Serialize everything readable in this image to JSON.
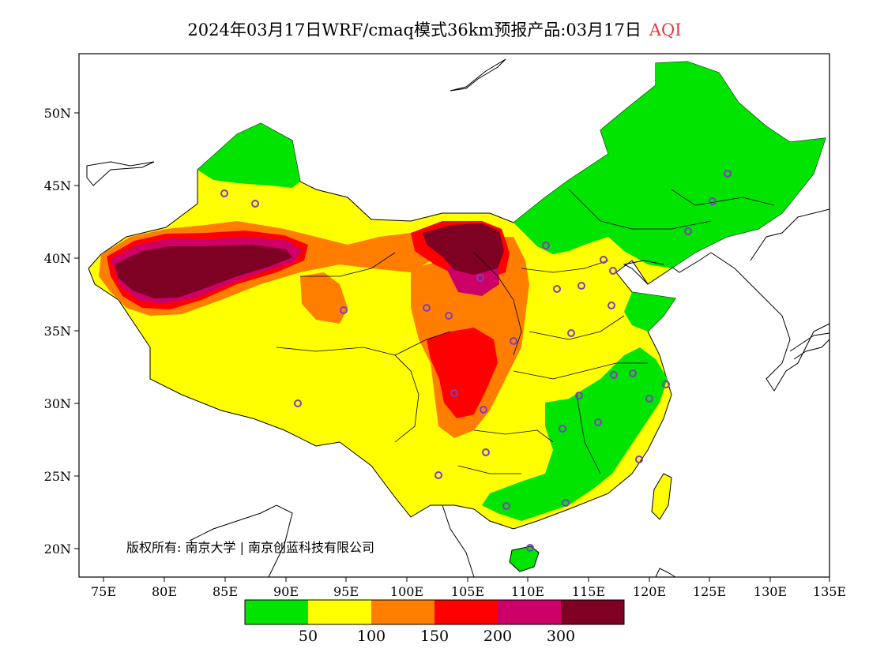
{
  "header": {
    "title": "2024年03月17日WRF/cmaq模式36km预报产品:03月17日",
    "product": "AQI"
  },
  "axes": {
    "lat_ticks": [
      "50N",
      "45N",
      "40N",
      "35N",
      "30N",
      "25N",
      "20N"
    ],
    "lon_ticks": [
      "75E",
      "80E",
      "85E",
      "90E",
      "95E",
      "100E",
      "105E",
      "110E",
      "115E",
      "120E",
      "125E",
      "130E",
      "135E"
    ]
  },
  "legend": {
    "colors": [
      "#00e400",
      "#ffff00",
      "#ff7e00",
      "#ff0000",
      "#cc0066",
      "#7e0023"
    ],
    "labels": [
      "50",
      "100",
      "150",
      "200",
      "300"
    ]
  },
  "footer": {
    "copyright": "版权所有: 南京大学 | 南京创蓝科技有限公司"
  }
}
